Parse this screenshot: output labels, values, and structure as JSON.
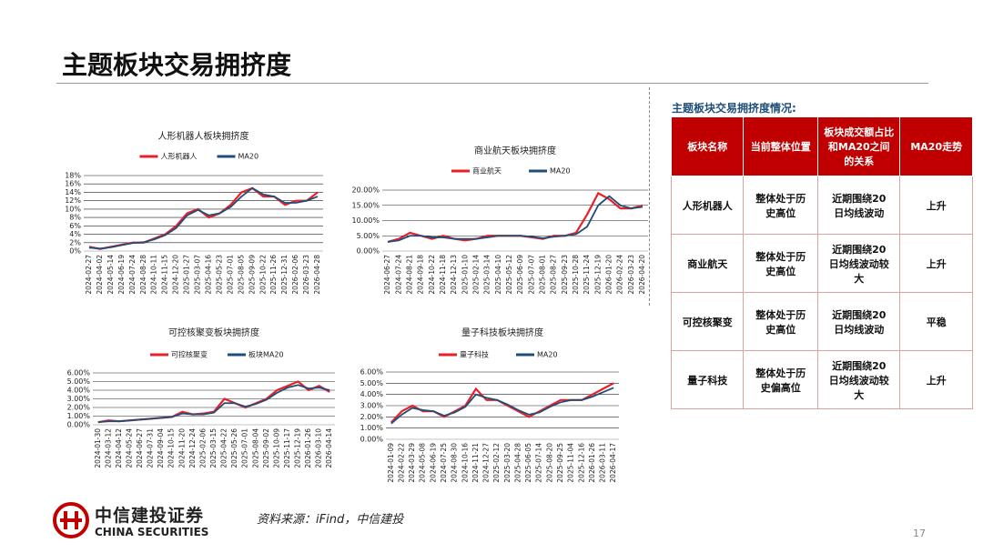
{
  "header": {
    "title": "主题板块交易拥挤度"
  },
  "chart_data": [
    {
      "type": "line",
      "title": "人形机器人板块拥挤度",
      "categories": [
        "2024-02-27",
        "2024-04-02",
        "2024-05-14",
        "2024-06-19",
        "2024-07-24",
        "2024-08-28",
        "2024-10-11",
        "2024-11-15",
        "2024-12-20",
        "2025-01-27",
        "2025-03-07",
        "2025-04-16",
        "2025-05-23",
        "2025-07-01",
        "2025-08-05",
        "2025-09-09",
        "2025-10-22",
        "2025-11-26",
        "2025-12-31",
        "2026-02-06",
        "2026-03-23",
        "2026-04-28"
      ],
      "series": [
        {
          "name": "人形机器人",
          "color": "#e8202a",
          "values": [
            1,
            0.5,
            1,
            1.5,
            2,
            2,
            3,
            4,
            6,
            9,
            10,
            8,
            9,
            11,
            14,
            15,
            13,
            13,
            11,
            12,
            12,
            14
          ]
        },
        {
          "name": "MA20",
          "color": "#1f4e79",
          "values": [
            0.8,
            0.6,
            0.9,
            1.4,
            1.9,
            2.1,
            2.8,
            3.8,
            5.5,
            8.5,
            9.8,
            8.5,
            9,
            10.5,
            13,
            15,
            13.5,
            13,
            11.5,
            11.5,
            12,
            13
          ]
        }
      ],
      "ylim": [
        0,
        18
      ],
      "yticks": [
        {
          "value": 0,
          "label": "0%"
        },
        {
          "value": 2,
          "label": "2%"
        },
        {
          "value": 4,
          "label": "4%"
        },
        {
          "value": 6,
          "label": "6%"
        },
        {
          "value": 8,
          "label": "8%"
        },
        {
          "value": 10,
          "label": "10%"
        },
        {
          "value": 12,
          "label": "12%"
        },
        {
          "value": 14,
          "label": "14%"
        },
        {
          "value": 16,
          "label": "16%"
        },
        {
          "value": 18,
          "label": "18%"
        }
      ],
      "grid": true
    },
    {
      "type": "line",
      "title": "商业航天板块拥挤度",
      "categories": [
        "2024-06-27",
        "2024-07-24",
        "2024-08-21",
        "2024-09-18",
        "2024-10-22",
        "2024-11-18",
        "2024-12-13",
        "2025-01-10",
        "2025-02-14",
        "2025-03-14",
        "2025-04-10",
        "2025-05-12",
        "2025-06-09",
        "2025-07-07",
        "2025-08-01",
        "2025-08-27",
        "2025-09-23",
        "2025-10-28",
        "2025-11-24",
        "2025-12-19",
        "2026-01-20",
        "2026-02-24",
        "2026-03-23",
        "2026-04-20"
      ],
      "series": [
        {
          "name": "商业航天",
          "color": "#e8202a",
          "values": [
            3,
            4,
            6,
            5,
            4,
            5,
            4,
            3.5,
            4,
            5,
            5,
            5,
            5,
            4.5,
            4,
            5,
            5,
            6,
            12,
            19,
            17,
            14,
            14,
            15
          ]
        },
        {
          "name": "MA20",
          "color": "#1f4e79",
          "values": [
            3,
            3.5,
            5,
            5,
            4.5,
            4.5,
            4,
            4,
            4,
            4.5,
            5,
            5,
            5,
            4.7,
            4.2,
            4.7,
            5,
            5.5,
            8,
            15,
            18,
            15,
            14,
            14.5
          ]
        }
      ],
      "ylim": [
        0,
        20
      ],
      "yticks": [
        {
          "value": 0,
          "label": "0.00%"
        },
        {
          "value": 5,
          "label": "5.00%"
        },
        {
          "value": 10,
          "label": "10.00%"
        },
        {
          "value": 15,
          "label": "15.00%"
        },
        {
          "value": 20,
          "label": "20.00%"
        }
      ],
      "grid": true
    },
    {
      "type": "line",
      "title": "可控核聚变板块拥挤度",
      "categories": [
        "2024-01-30",
        "2024-03-12",
        "2024-04-12",
        "2024-05-24",
        "2024-06-27",
        "2024-07-31",
        "2024-09-04",
        "2024-10-15",
        "2024-11-20",
        "2024-12-24",
        "2025-02-06",
        "2025-03-15",
        "2025-04-22",
        "2025-05-26",
        "2025-07-01",
        "2025-08-04",
        "2025-09-02",
        "2025-10-09",
        "2025-11-17",
        "2025-12-19",
        "2026-01-26",
        "2026-03-10",
        "2026-04-14"
      ],
      "series": [
        {
          "name": "可控核聚变",
          "color": "#e8202a",
          "values": [
            0.3,
            0.5,
            0.4,
            0.5,
            0.6,
            0.7,
            0.8,
            0.9,
            1.5,
            1.2,
            1.3,
            1.5,
            3,
            2.5,
            2,
            2.5,
            3,
            4,
            4.5,
            5,
            4,
            4.5,
            3.8
          ]
        },
        {
          "name": "板块MA20",
          "color": "#1f4e79",
          "values": [
            0.3,
            0.4,
            0.4,
            0.5,
            0.6,
            0.7,
            0.8,
            0.9,
            1.3,
            1.2,
            1.2,
            1.4,
            2.5,
            2.5,
            2.1,
            2.4,
            2.9,
            3.7,
            4.3,
            4.6,
            4.2,
            4.3,
            4
          ]
        }
      ],
      "ylim": [
        0,
        6
      ],
      "yticks": [
        {
          "value": 0,
          "label": "0.00%"
        },
        {
          "value": 1,
          "label": "1.00%"
        },
        {
          "value": 2,
          "label": "2.00%"
        },
        {
          "value": 3,
          "label": "3.00%"
        },
        {
          "value": 4,
          "label": "4.00%"
        },
        {
          "value": 5,
          "label": "5.00%"
        },
        {
          "value": 6,
          "label": "6.00%"
        }
      ],
      "grid": true
    },
    {
      "type": "line",
      "title": "量子科技板块拥挤度",
      "categories": [
        "2024-01-09",
        "2024-02-22",
        "2024-03-29",
        "2024-05-08",
        "2024-06-19",
        "2024-07-25",
        "2024-08-30",
        "2024-10-16",
        "2024-11-21",
        "2024-12-27",
        "2025-02-12",
        "2025-03-20",
        "2025-04-28",
        "2025-06-05",
        "2025-07-14",
        "2025-08-20",
        "2025-09-25",
        "2025-11-04",
        "2025-12-16",
        "2026-01-26",
        "2026-03-11",
        "2026-04-17"
      ],
      "series": [
        {
          "name": "量子科技",
          "color": "#e8202a",
          "values": [
            1.5,
            2.5,
            3,
            2.5,
            2.5,
            2,
            2.5,
            3,
            4.5,
            3.5,
            3.5,
            3,
            2.5,
            2,
            2.5,
            3,
            3.5,
            3.5,
            3.5,
            4,
            4.5,
            5
          ]
        },
        {
          "name": "MA20",
          "color": "#1f4e79",
          "values": [
            1.4,
            2.2,
            2.8,
            2.6,
            2.5,
            2.1,
            2.4,
            2.9,
            4,
            3.7,
            3.5,
            3.1,
            2.6,
            2.2,
            2.4,
            2.9,
            3.3,
            3.5,
            3.5,
            3.8,
            4.2,
            4.6
          ]
        }
      ],
      "ylim": [
        0,
        6
      ],
      "yticks": [
        {
          "value": 0,
          "label": "0.00%"
        },
        {
          "value": 1,
          "label": "1.00%"
        },
        {
          "value": 2,
          "label": "2.00%"
        },
        {
          "value": 3,
          "label": "3.00%"
        },
        {
          "value": 4,
          "label": "4.00%"
        },
        {
          "value": 5,
          "label": "5.00%"
        },
        {
          "value": 6,
          "label": "6.00%"
        }
      ],
      "grid": true
    }
  ],
  "table": {
    "title": "主题板块交易拥挤度情况:",
    "header": [
      "板块名称",
      "当前整体位置",
      "板块成交额占比和MA20之间的关系",
      "MA20走势"
    ],
    "rows": [
      [
        "人形机器人",
        "整体处于历史高位",
        "近期围绕20日均线波动",
        "上升"
      ],
      [
        "商业航天",
        "整体处于历史高位",
        "近期围绕20日均线波动较大",
        "上升"
      ],
      [
        "可控核聚变",
        "整体处于历史高位",
        "近期围绕20日均线波动",
        "平稳"
      ],
      [
        "量子科技",
        "整体处于历史偏高位",
        "近期围绕20日均线波动较大",
        "上升"
      ]
    ]
  },
  "footer": {
    "logo_cn": "中信建投证券",
    "logo_en": "CHINA SECURITIES",
    "source": "资料来源：iFind，中信建投",
    "page": "17"
  }
}
